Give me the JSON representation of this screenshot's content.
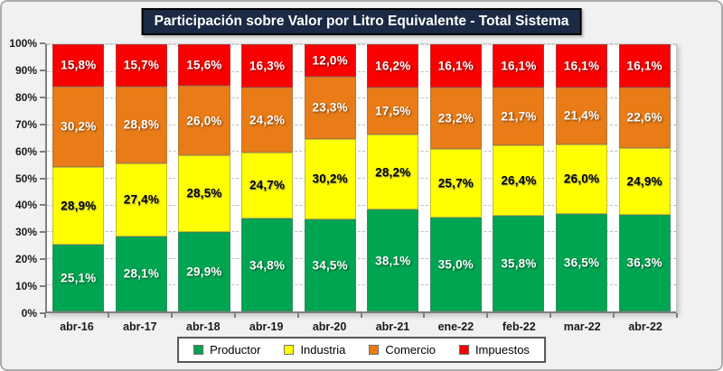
{
  "title": "Participación sobre Valor por Litro Equivalente - Total Sistema",
  "chart_data": {
    "type": "bar",
    "stacked": true,
    "title": "Participación sobre Valor por Litro Equivalente - Total Sistema",
    "categories": [
      "abr-16",
      "abr-17",
      "abr-18",
      "abr-19",
      "abr-20",
      "abr-21",
      "ene-22",
      "feb-22",
      "mar-22",
      "abr-22"
    ],
    "series": [
      {
        "name": "Productor",
        "color": "#00A551",
        "label_color": "light",
        "values": [
          25.1,
          28.1,
          29.9,
          34.8,
          34.5,
          38.1,
          35.0,
          35.8,
          36.5,
          36.3
        ],
        "labels": [
          "25,1%",
          "28,1%",
          "29,9%",
          "34,8%",
          "34,5%",
          "38,1%",
          "35,0%",
          "35,8%",
          "36,5%",
          "36,3%"
        ]
      },
      {
        "name": "Industria",
        "color": "#FFFF00",
        "label_color": "dark",
        "values": [
          28.9,
          27.4,
          28.5,
          24.7,
          30.2,
          28.2,
          25.7,
          26.4,
          26.0,
          24.9
        ],
        "labels": [
          "28,9%",
          "27,4%",
          "28,5%",
          "24,7%",
          "30,2%",
          "28,2%",
          "25,7%",
          "26,4%",
          "26,0%",
          "24,9%"
        ]
      },
      {
        "name": "Comercio",
        "color": "#E97C17",
        "label_color": "light",
        "values": [
          30.2,
          28.8,
          26.0,
          24.2,
          23.3,
          17.5,
          23.2,
          21.7,
          21.4,
          22.6
        ],
        "labels": [
          "30,2%",
          "28,8%",
          "26,0%",
          "24,2%",
          "23,3%",
          "17,5%",
          "23,2%",
          "21,7%",
          "21,4%",
          "22,6%"
        ]
      },
      {
        "name": "Impuestos",
        "color": "#FA0000",
        "label_color": "light",
        "values": [
          15.8,
          15.7,
          15.6,
          16.3,
          12.0,
          16.2,
          16.1,
          16.1,
          16.1,
          16.1
        ],
        "labels": [
          "15,8%",
          "15,7%",
          "15,6%",
          "16,3%",
          "12,0%",
          "16,2%",
          "16,1%",
          "16,1%",
          "16,1%",
          "16,1%"
        ]
      }
    ],
    "y_ticks": [
      "100%",
      "90%",
      "80%",
      "70%",
      "60%",
      "50%",
      "40%",
      "30%",
      "20%",
      "10%",
      "0%"
    ],
    "ylim": [
      0,
      100
    ],
    "grid": "horizontal-dashed",
    "legend_position": "bottom"
  }
}
